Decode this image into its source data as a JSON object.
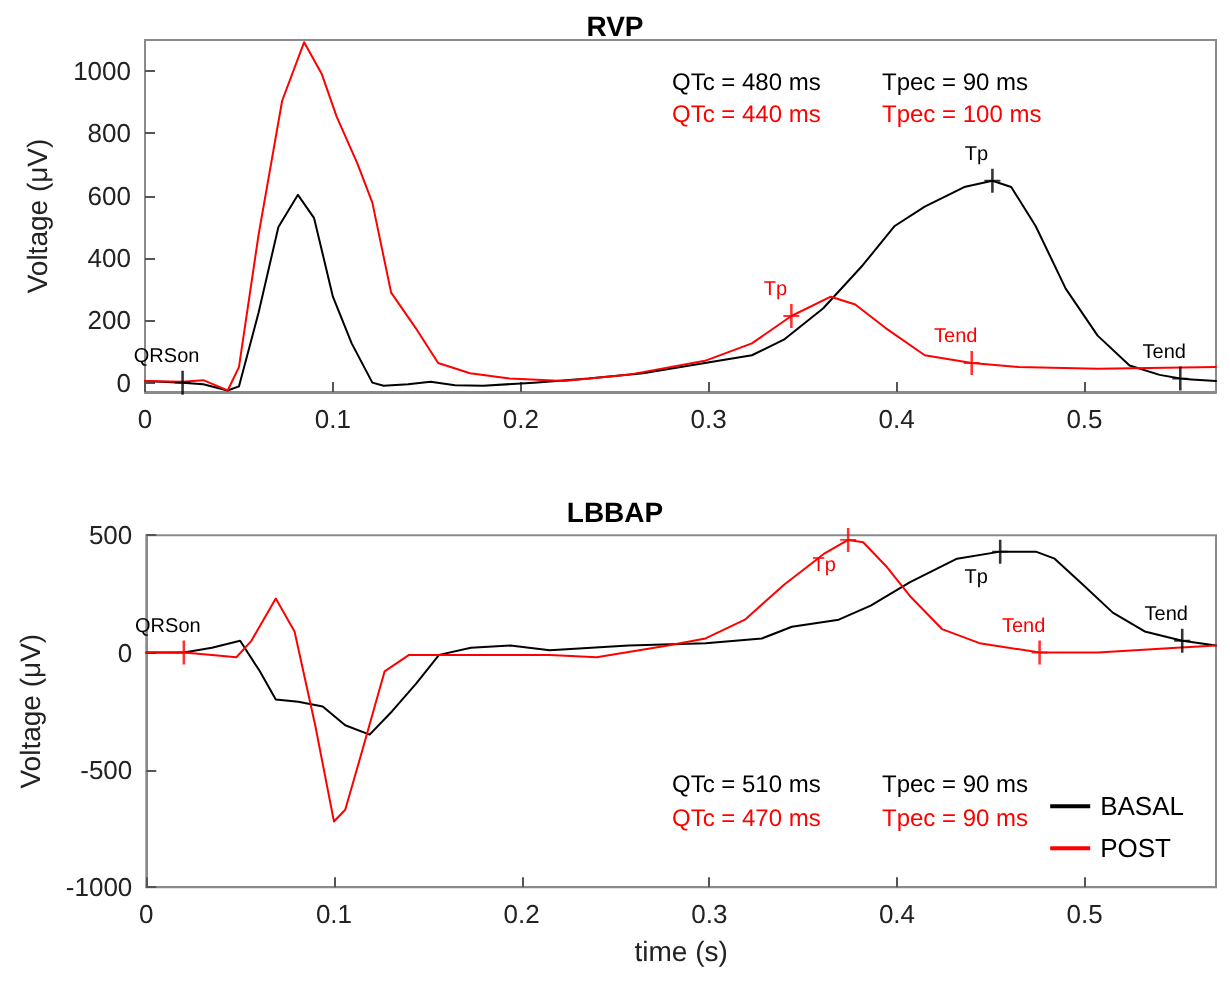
{
  "chart_data": [
    {
      "type": "line",
      "title": "RVP",
      "ylabel": "Voltage (μV)",
      "xlim": [
        0,
        0.57
      ],
      "xticks": [
        0,
        0.1,
        0.2,
        0.3,
        0.4,
        0.5
      ],
      "ylim": [
        -30,
        1100
      ],
      "yticks": [
        0,
        200,
        400,
        600,
        800,
        1000
      ],
      "grid": false,
      "legend": false,
      "marker": "none",
      "line_style": "solid",
      "annotations": [
        "QTc = 480 ms",
        "Tpec = 90 ms",
        "QTc = 440 ms",
        "Tpec = 100 ms",
        {
          "text": "QRSon",
          "x": 0.02,
          "y": 0
        },
        {
          "text": "Tp",
          "x": 0.451,
          "y": 648
        },
        {
          "text": "Tend",
          "x": 0.551,
          "y": 13
        },
        {
          "text": "Tp",
          "x": 0.344,
          "y": 214
        },
        {
          "text": "Tend",
          "x": 0.44,
          "y": 63
        }
      ],
      "series": [
        {
          "color": "#000000",
          "x": [
            0,
            0.02,
            0.031,
            0.044,
            0.05,
            0.0605,
            0.071,
            0.0814,
            0.09,
            0.1,
            0.11,
            0.121,
            0.127,
            0.14,
            0.152,
            0.165,
            0.18,
            0.207,
            0.236,
            0.265,
            0.298,
            0.323,
            0.34,
            0.361,
            0.382,
            0.399,
            0.415,
            0.436,
            0.451,
            0.461,
            0.474,
            0.49,
            0.507,
            0.524,
            0.54,
            0.551,
            0.557,
            0.57
          ],
          "values": [
            5,
            0,
            -5,
            -25,
            -12,
            226,
            500,
            603,
            528,
            276,
            126,
            0,
            -10,
            -5,
            3,
            -8,
            -10,
            0,
            13,
            30,
            63,
            88,
            138,
            239,
            377,
            503,
            565,
            628,
            648,
            628,
            503,
            302,
            151,
            55,
            25,
            13,
            10,
            5
          ]
        },
        {
          "color": "#ff0000",
          "x": [
            0,
            0.02,
            0.031,
            0.044,
            0.05,
            0.0605,
            0.073,
            0.0847,
            0.094,
            0.102,
            0.113,
            0.121,
            0.131,
            0.144,
            0.156,
            0.173,
            0.194,
            0.223,
            0.257,
            0.298,
            0.323,
            0.344,
            0.365,
            0.378,
            0.394,
            0.415,
            0.44,
            0.465,
            0.507,
            0.57
          ],
          "values": [
            5,
            3,
            8,
            -25,
            50,
            477,
            905,
            1093,
            992,
            854,
            704,
            578,
            289,
            176,
            63,
            30,
            13,
            5,
            25,
            70,
            126,
            214,
            276,
            251,
            176,
            88,
            63,
            50,
            45,
            50
          ]
        },
        {
          "type": "scatter",
          "color": "#000000",
          "marker": "cross",
          "x": [
            0.02,
            0.451,
            0.551
          ],
          "values": [
            0,
            648,
            13
          ]
        },
        {
          "type": "scatter",
          "color": "#ff0000",
          "marker": "cross",
          "x": [
            0.344,
            0.44
          ],
          "values": [
            214,
            63
          ]
        }
      ]
    },
    {
      "type": "line",
      "title": "LBBAP",
      "xlabel": "time (s)",
      "ylabel": "Voltage (μV)",
      "xlim": [
        0,
        0.57
      ],
      "xticks": [
        0,
        0.1,
        0.2,
        0.3,
        0.4,
        0.5
      ],
      "ylim": [
        -1000,
        500
      ],
      "yticks": [
        -1000,
        -500,
        0,
        500
      ],
      "grid": false,
      "legend": "bottom right",
      "marker": "none",
      "line_style": "solid",
      "annotations": [
        "QTc = 510 ms",
        "Tpec = 90 ms",
        "QTc = 470 ms",
        "Tpec = 90 ms",
        {
          "text": "QRSon",
          "x": 0.02,
          "y": 0
        },
        {
          "text": "Tp",
          "x": 0.455,
          "y": 430
        },
        {
          "text": "Tend",
          "x": 0.552,
          "y": 50
        },
        {
          "text": "Tp",
          "x": 0.374,
          "y": 480
        },
        {
          "text": "Tend",
          "x": 0.476,
          "y": 0
        }
      ],
      "series": [
        {
          "name": "BASAL",
          "color": "#000000",
          "x": [
            0,
            0.02,
            0.035,
            0.05,
            0.0605,
            0.069,
            0.081,
            0.094,
            0.106,
            0.119,
            0.131,
            0.144,
            0.156,
            0.173,
            0.194,
            0.215,
            0.257,
            0.298,
            0.328,
            0.344,
            0.369,
            0.386,
            0.407,
            0.432,
            0.455,
            0.474,
            0.484,
            0.499,
            0.515,
            0.532,
            0.552,
            0.57
          ],
          "values": [
            0,
            0,
            20,
            50,
            -80,
            -200,
            -210,
            -230,
            -310,
            -350,
            -250,
            -130,
            -10,
            20,
            30,
            10,
            30,
            40,
            60,
            110,
            140,
            200,
            300,
            400,
            430,
            430,
            400,
            290,
            170,
            90,
            50,
            30
          ]
        },
        {
          "name": "POST",
          "color": "#ff0000",
          "x": [
            0,
            0.02,
            0.035,
            0.048,
            0.056,
            0.069,
            0.079,
            0.09,
            0.1,
            0.106,
            0.115,
            0.127,
            0.14,
            0.173,
            0.215,
            0.24,
            0.278,
            0.298,
            0.319,
            0.34,
            0.361,
            0.374,
            0.382,
            0.394,
            0.407,
            0.424,
            0.444,
            0.476,
            0.507,
            0.549,
            0.57
          ],
          "values": [
            0,
            0,
            -10,
            -20,
            50,
            230,
            90,
            -310,
            -720,
            -670,
            -420,
            -80,
            -10,
            -10,
            -10,
            -20,
            30,
            60,
            140,
            290,
            420,
            480,
            470,
            370,
            240,
            100,
            40,
            0,
            0,
            20,
            30
          ]
        },
        {
          "type": "scatter",
          "color": "#000000",
          "marker": "cross",
          "x": [
            0.455,
            0.552
          ],
          "values": [
            430,
            50
          ]
        },
        {
          "type": "scatter",
          "color": "#ff0000",
          "marker": "cross",
          "x": [
            0.02,
            0.374,
            0.476
          ],
          "values": [
            0,
            480,
            0
          ]
        }
      ]
    }
  ]
}
